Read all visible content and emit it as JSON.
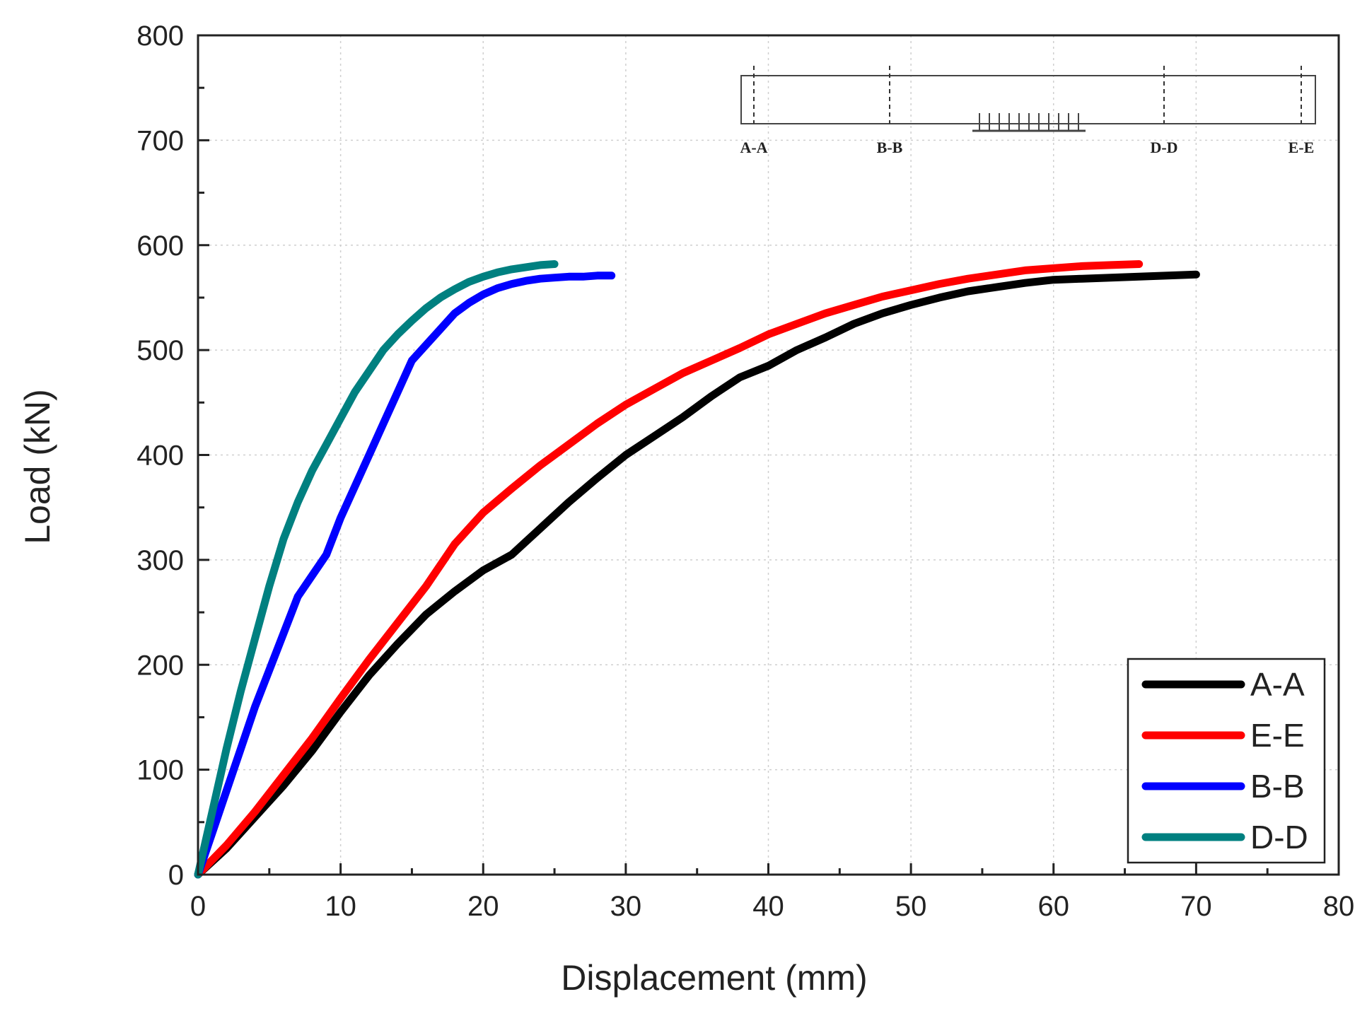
{
  "chart_data": {
    "type": "line",
    "title": "",
    "xlabel": "Displacement (mm)",
    "ylabel": "Load (kN)",
    "xlim": [
      0,
      80
    ],
    "ylim": [
      0,
      800
    ],
    "xticks": [
      0,
      10,
      20,
      30,
      40,
      50,
      60,
      70,
      80
    ],
    "yticks": [
      0,
      100,
      200,
      300,
      400,
      500,
      600,
      700,
      800
    ],
    "grid": true,
    "legend_position": "bottom-right",
    "series": [
      {
        "name": "A-A",
        "color": "#000000",
        "points": [
          [
            0,
            0
          ],
          [
            2,
            25
          ],
          [
            4,
            55
          ],
          [
            6,
            85
          ],
          [
            8,
            118
          ],
          [
            10,
            155
          ],
          [
            12,
            190
          ],
          [
            14,
            220
          ],
          [
            16,
            248
          ],
          [
            18,
            270
          ],
          [
            20,
            290
          ],
          [
            22,
            305
          ],
          [
            24,
            330
          ],
          [
            26,
            355
          ],
          [
            28,
            378
          ],
          [
            30,
            400
          ],
          [
            32,
            418
          ],
          [
            34,
            436
          ],
          [
            36,
            456
          ],
          [
            38,
            474
          ],
          [
            40,
            485
          ],
          [
            42,
            500
          ],
          [
            44,
            512
          ],
          [
            46,
            525
          ],
          [
            48,
            535
          ],
          [
            50,
            543
          ],
          [
            52,
            550
          ],
          [
            54,
            556
          ],
          [
            56,
            560
          ],
          [
            58,
            564
          ],
          [
            60,
            567
          ],
          [
            62,
            568
          ],
          [
            64,
            569
          ],
          [
            66,
            570
          ],
          [
            68,
            571
          ],
          [
            70,
            572
          ]
        ]
      },
      {
        "name": "E-E",
        "color": "#ff0000",
        "points": [
          [
            0,
            0
          ],
          [
            2,
            28
          ],
          [
            4,
            60
          ],
          [
            6,
            95
          ],
          [
            8,
            130
          ],
          [
            10,
            168
          ],
          [
            12,
            205
          ],
          [
            14,
            240
          ],
          [
            16,
            275
          ],
          [
            18,
            315
          ],
          [
            20,
            345
          ],
          [
            22,
            368
          ],
          [
            24,
            390
          ],
          [
            26,
            410
          ],
          [
            28,
            430
          ],
          [
            30,
            448
          ],
          [
            32,
            463
          ],
          [
            34,
            478
          ],
          [
            36,
            490
          ],
          [
            38,
            502
          ],
          [
            40,
            515
          ],
          [
            42,
            525
          ],
          [
            44,
            535
          ],
          [
            46,
            543
          ],
          [
            48,
            551
          ],
          [
            50,
            557
          ],
          [
            52,
            563
          ],
          [
            54,
            568
          ],
          [
            56,
            572
          ],
          [
            58,
            576
          ],
          [
            60,
            578
          ],
          [
            62,
            580
          ],
          [
            64,
            581
          ],
          [
            66,
            582
          ]
        ]
      },
      {
        "name": "B-B",
        "color": "#0000ff",
        "points": [
          [
            0,
            0
          ],
          [
            1,
            40
          ],
          [
            2,
            80
          ],
          [
            3,
            120
          ],
          [
            4,
            160
          ],
          [
            5,
            195
          ],
          [
            6,
            230
          ],
          [
            7,
            265
          ],
          [
            8,
            285
          ],
          [
            9,
            305
          ],
          [
            10,
            340
          ],
          [
            11,
            370
          ],
          [
            12,
            400
          ],
          [
            13,
            430
          ],
          [
            14,
            460
          ],
          [
            15,
            490
          ],
          [
            16,
            505
          ],
          [
            17,
            520
          ],
          [
            18,
            535
          ],
          [
            19,
            545
          ],
          [
            20,
            553
          ],
          [
            21,
            559
          ],
          [
            22,
            563
          ],
          [
            23,
            566
          ],
          [
            24,
            568
          ],
          [
            25,
            569
          ],
          [
            26,
            570
          ],
          [
            27,
            570
          ],
          [
            28,
            571
          ],
          [
            29,
            571
          ]
        ]
      },
      {
        "name": "D-D",
        "color": "#008080",
        "points": [
          [
            0,
            0
          ],
          [
            1,
            60
          ],
          [
            2,
            120
          ],
          [
            3,
            175
          ],
          [
            4,
            225
          ],
          [
            5,
            275
          ],
          [
            6,
            320
          ],
          [
            7,
            355
          ],
          [
            8,
            385
          ],
          [
            9,
            410
          ],
          [
            10,
            435
          ],
          [
            11,
            460
          ],
          [
            12,
            480
          ],
          [
            13,
            500
          ],
          [
            14,
            515
          ],
          [
            15,
            528
          ],
          [
            16,
            540
          ],
          [
            17,
            550
          ],
          [
            18,
            558
          ],
          [
            19,
            565
          ],
          [
            20,
            570
          ],
          [
            21,
            574
          ],
          [
            22,
            577
          ],
          [
            23,
            579
          ],
          [
            24,
            581
          ],
          [
            25,
            582
          ]
        ]
      }
    ],
    "inset": {
      "labels": [
        "A-A",
        "B-B",
        "D-D",
        "E-E"
      ]
    }
  }
}
